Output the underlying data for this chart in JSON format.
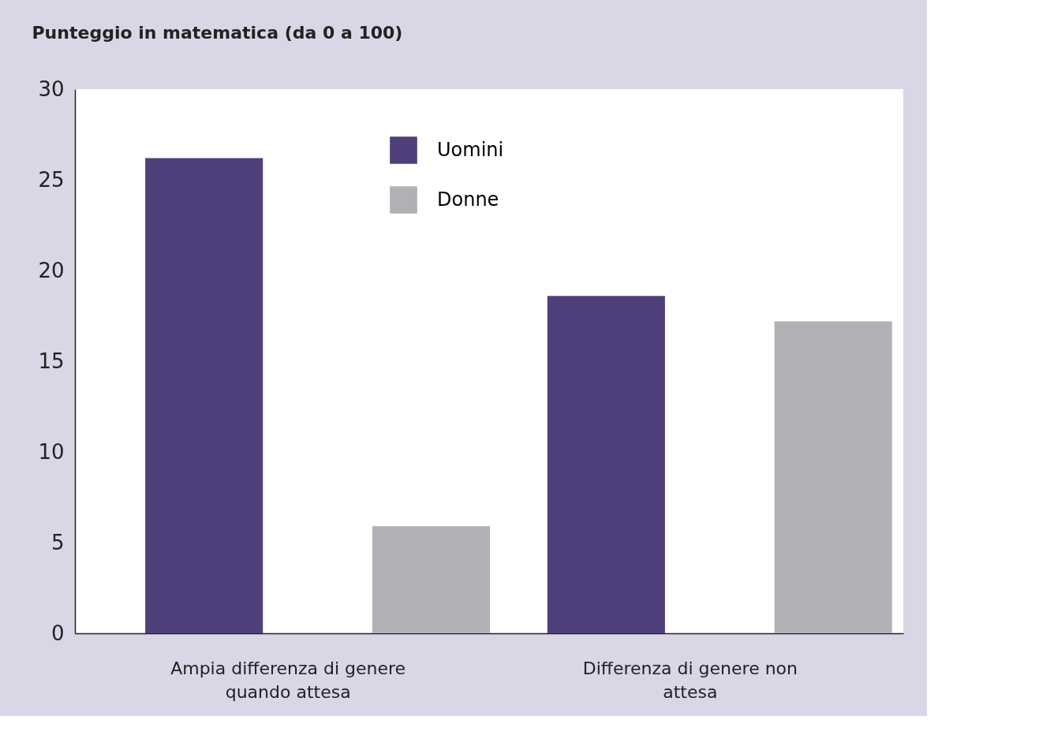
{
  "chart_data": {
    "type": "bar",
    "ylabel": "Punteggio in matematica (da 0 a 100)",
    "categories": [
      "Ampia differenza di genere quando attesa",
      "Differenza di genere non attesa"
    ],
    "series": [
      {
        "name": "Uomini",
        "color": "#4f3f7a",
        "values": [
          26.2,
          18.6
        ]
      },
      {
        "name": "Donne",
        "color": "#b0b1b5",
        "values": [
          5.9,
          17.2
        ]
      }
    ],
    "ylim": [
      0,
      30
    ],
    "yticks": [
      0,
      5,
      10,
      15,
      20,
      25,
      30
    ],
    "grid": false,
    "legend": "top"
  }
}
